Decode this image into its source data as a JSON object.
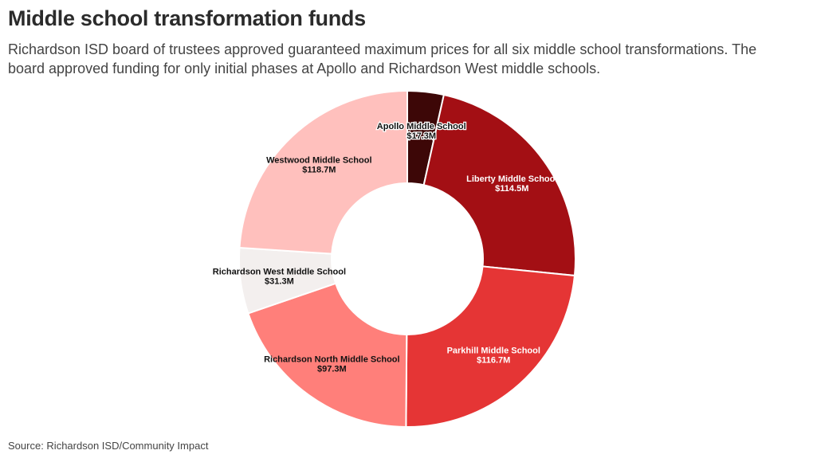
{
  "header": {
    "title": "Middle school transformation funds",
    "subtitle": "Richardson ISD board of trustees approved guaranteed maximum prices for all six middle school transformations. The board approved funding for only initial phases at Apollo and Richardson West middle schools."
  },
  "footer": {
    "source": "Source: Richardson ISD/Community Impact"
  },
  "chart_data": {
    "type": "pie",
    "donut": true,
    "legend": "none",
    "value_unit": "million USD",
    "slices": [
      {
        "label": "Apollo Middle School",
        "value": 17.3,
        "display": "$17.3M",
        "color": "#3d0707",
        "text_color": "#ffffff"
      },
      {
        "label": "Liberty Middle School",
        "value": 114.5,
        "display": "$114.5M",
        "color": "#a30f14",
        "text_color": "#ffffff"
      },
      {
        "label": "Parkhill Middle School",
        "value": 116.7,
        "display": "$116.7M",
        "color": "#e53535",
        "text_color": "#ffffff"
      },
      {
        "label": "Richardson North Middle School",
        "value": 97.3,
        "display": "$97.3M",
        "color": "#ff7f7a",
        "text_color": "#111111"
      },
      {
        "label": "Richardson West Middle School",
        "value": 31.3,
        "display": "$31.3M",
        "color": "#f3efee",
        "text_color": "#111111"
      },
      {
        "label": "Westwood Middle School",
        "value": 118.7,
        "display": "$118.7M",
        "color": "#ffc0bd",
        "text_color": "#111111"
      }
    ]
  }
}
